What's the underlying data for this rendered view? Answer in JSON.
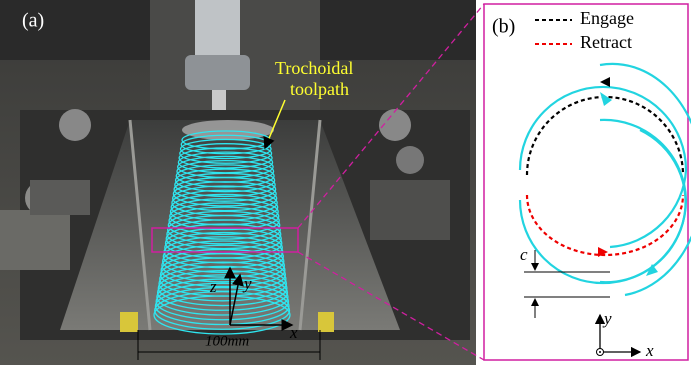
{
  "panel_a": {
    "label": "(a)",
    "annotation": [
      "Trochoidal",
      "toolpath"
    ],
    "axes": {
      "z": "z",
      "y": "y",
      "x": "x"
    },
    "dimension": "100mm"
  },
  "panel_b": {
    "label": "(b)",
    "legend": [
      {
        "name": "Engage"
      },
      {
        "name": "Retract"
      }
    ],
    "dimension": "c",
    "axes": {
      "y": "y",
      "x": "x"
    }
  }
}
